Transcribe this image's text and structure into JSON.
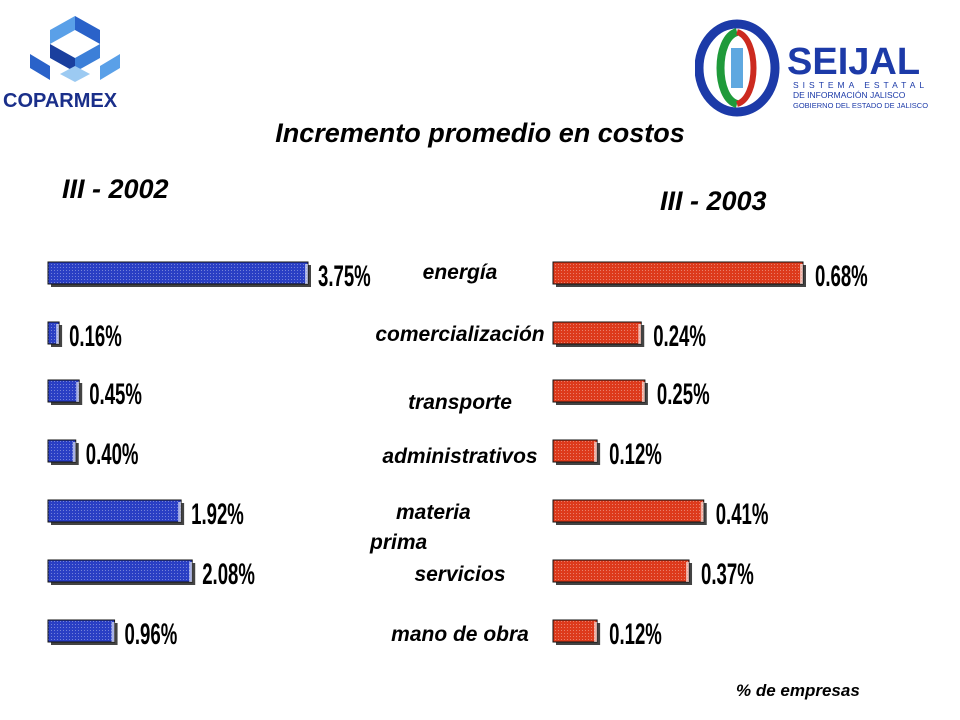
{
  "header": {
    "left_logo_text": "COPARMEX",
    "right_logo": {
      "brand": "SEIJAL",
      "line1": "SISTEMA ESTATAL",
      "line2": "DE INFORMACIÓN JALISCO",
      "line3": "GOBIERNO DEL ESTADO DE JALISCO",
      "colors": {
        "blue": "#1c3aa8",
        "red": "#cc2a1f",
        "green": "#1f9a3a"
      }
    }
  },
  "footnote": "% de empresas",
  "chart_data": {
    "type": "bar",
    "orientation": "horizontal",
    "title": "Incremento promedio en costos",
    "categories": [
      "energía",
      "comercialización",
      "transporte",
      "administrativos",
      "materia prima",
      "servicios",
      "mano de obra"
    ],
    "category_labels": [
      {
        "lines": [
          "energía"
        ]
      },
      {
        "lines": [
          "comercialización"
        ]
      },
      {
        "lines": [
          "transporte"
        ]
      },
      {
        "lines": [
          "administrativos"
        ]
      },
      {
        "lines": [
          "materia",
          "prima"
        ]
      },
      {
        "lines": [
          "servicios"
        ]
      },
      {
        "lines": [
          "mano de obra"
        ]
      }
    ],
    "series": [
      {
        "name": "III - 2002",
        "values": [
          3.75,
          0.16,
          0.45,
          0.4,
          1.92,
          2.08,
          0.96
        ],
        "labels": [
          "3.75%",
          "0.16%",
          "0.45%",
          "0.40%",
          "1.92%",
          "2.08%",
          "0.96%"
        ],
        "color": "#2a3fc4"
      },
      {
        "name": "III - 2003",
        "values": [
          0.68,
          0.24,
          0.25,
          0.12,
          0.41,
          0.37,
          0.12
        ],
        "labels": [
          "0.68%",
          "0.24%",
          "0.25%",
          "0.12%",
          "0.41%",
          "0.37%",
          "0.12%"
        ],
        "color": "#dd3a1c"
      }
    ],
    "grid": false,
    "legend": "none"
  }
}
